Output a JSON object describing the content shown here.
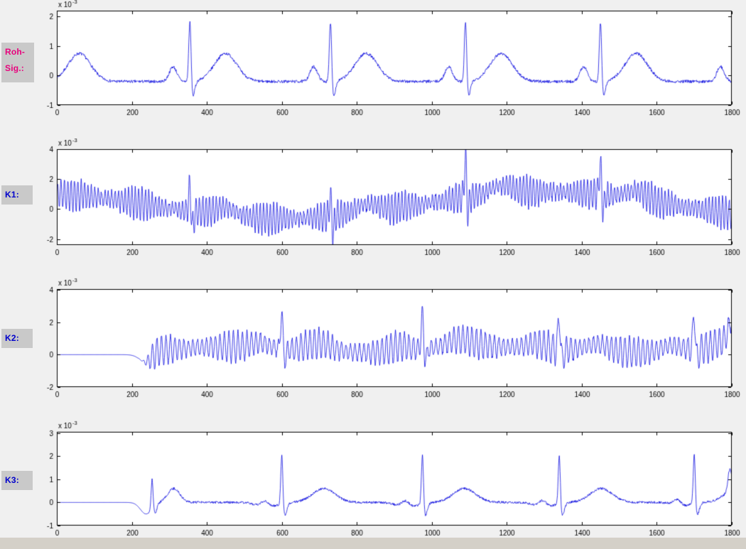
{
  "figure": {
    "bg": "#f0f0f0",
    "axes_bg": "#ffffff",
    "axis_color": "#000000",
    "signal_color": "#0000dd",
    "bottom_strip": "#d4d0c8"
  },
  "labels": [
    {
      "id": "roh-sig",
      "text_lines": [
        "Roh-",
        "Sig.:"
      ],
      "color": "#e8007c"
    },
    {
      "id": "k1",
      "text_lines": [
        "K1:"
      ],
      "color": "#0000cc"
    },
    {
      "id": "k2",
      "text_lines": [
        "K2:"
      ],
      "color": "#0000cc"
    },
    {
      "id": "k3",
      "text_lines": [
        "K3:"
      ],
      "color": "#0000cc"
    }
  ],
  "chart_data": [
    {
      "id": "roh-sig",
      "type": "line",
      "label": "Roh-Sig.:",
      "color": "#0000dd",
      "xlim": [
        0,
        1800
      ],
      "xticks": [
        0,
        200,
        400,
        600,
        800,
        1000,
        1200,
        1400,
        1600,
        1800
      ],
      "ylim": [
        -1,
        2.2
      ],
      "yticks": [
        -1,
        0,
        1,
        2
      ],
      "y_scale_label": "x 10^-3",
      "seed": 7,
      "signal": {
        "baseline": -0.2,
        "noise": {
          "amp": 0.05
        },
        "beats": {
          "times": [
            -35,
            355,
            730,
            1090,
            1450,
            1815
          ],
          "spike": 2.35,
          "spike_w": 3.2,
          "dip": -0.6,
          "dip_off": 6,
          "dip_w": 6,
          "p_amp": 0.5,
          "p_off": -45,
          "p_w": 10,
          "t_amp": 0.95,
          "t_off": 95,
          "t_w": 30
        }
      }
    },
    {
      "id": "k1",
      "type": "line",
      "label": "K1:",
      "color": "#0000dd",
      "xlim": [
        0,
        1800
      ],
      "xticks": [
        0,
        200,
        400,
        600,
        800,
        1000,
        1200,
        1400,
        1600,
        1800
      ],
      "ylim": [
        -2.4,
        4.0
      ],
      "yticks": [
        -2,
        0,
        2,
        4
      ],
      "y_scale_label": "x 10^-3",
      "seed": 13,
      "signal": {
        "baseline": 0,
        "wander": {
          "mean": 0.25,
          "amp": 0.9,
          "period": 1400,
          "peak_x": 1300
        },
        "osc": {
          "period": 9,
          "amp_base": 0.75,
          "amp_var": 0.3,
          "var_period": 173
        },
        "noise": {
          "amp": 0.18
        },
        "beats": {
          "times": [
            355,
            730,
            1090,
            1450
          ],
          "spike": [
            2.2,
            1.9,
            3.1,
            2.6
          ],
          "spike_w": 3,
          "dip": -1.3,
          "dip_off": 5,
          "dip_w": 4,
          "t_amp": 0.55,
          "t_off": 95,
          "t_w": 30
        }
      }
    },
    {
      "id": "k2",
      "type": "line",
      "label": "K2:",
      "color": "#0000dd",
      "xlim": [
        0,
        1800
      ],
      "xticks": [
        0,
        200,
        400,
        600,
        800,
        1000,
        1200,
        1400,
        1600,
        1800
      ],
      "ylim": [
        -2.0,
        4.05
      ],
      "yticks": [
        -2,
        0,
        2,
        4
      ],
      "y_scale_label": "x 10^-3",
      "seed": 21,
      "signal": {
        "baseline": 0,
        "flat_until": 245,
        "gate_w": 6,
        "wander": {
          "mean": 0.3,
          "amp": 0.18,
          "period": 700,
          "peak_x": 450
        },
        "osc": {
          "period": 12,
          "amp_base": 0.72,
          "amp_var": 0.25,
          "var_period": 211
        },
        "noise": {
          "amp": 0.12
        },
        "beats": {
          "times": [
            600,
            975,
            1340,
            1700
          ],
          "spike": 2.6,
          "spike_w": 3,
          "dip": -0.8,
          "dip_off": 6,
          "dip_w": 5,
          "p_amp": 0.3,
          "p_off": -60,
          "p_w": 25,
          "t_amp": 0.5,
          "t_off": 100,
          "t_w": 35
        },
        "bumps": [
          {
            "x": 240,
            "amp": -0.5,
            "w": 18
          },
          {
            "x": 1800,
            "amp": 1.2,
            "w": 8
          }
        ]
      }
    },
    {
      "id": "k3",
      "type": "line",
      "label": "K3:",
      "color": "#0000dd",
      "xlim": [
        0,
        1800
      ],
      "xticks": [
        0,
        200,
        400,
        600,
        800,
        1000,
        1200,
        1400,
        1600,
        1800
      ],
      "ylim": [
        -1,
        3.05
      ],
      "yticks": [
        -1,
        0,
        1,
        2,
        3
      ],
      "y_scale_label": "x 10^-3",
      "seed": 33,
      "signal": {
        "baseline": 0,
        "flat_until": 246,
        "gate_w": 5,
        "noise": {
          "amp": 0.05
        },
        "beats": {
          "times": [
            600,
            975,
            1340,
            1700
          ],
          "spike": 2.35,
          "spike_w": 2.8,
          "dip": -0.55,
          "dip_off": 7,
          "dip_w": 6,
          "p_amp": 0.28,
          "p_off": -45,
          "p_w": 10,
          "t_amp": 0.6,
          "t_off": 112,
          "t_w": 30
        },
        "bumps": [
          {
            "x": 238,
            "amp": -0.5,
            "w": 15
          },
          {
            "x": 254,
            "amp": 1.3,
            "w": 2.5
          },
          {
            "x": 263,
            "amp": -0.35,
            "w": 4
          },
          {
            "x": 312,
            "amp": 0.6,
            "w": 16
          },
          {
            "x": 560,
            "amp": -0.22,
            "w": 25
          },
          {
            "x": 935,
            "amp": -0.22,
            "w": 25
          },
          {
            "x": 1300,
            "amp": -0.2,
            "w": 25
          },
          {
            "x": 1665,
            "amp": -0.18,
            "w": 20
          },
          {
            "x": 1795,
            "amp": 0.95,
            "w": 5
          }
        ]
      }
    }
  ]
}
